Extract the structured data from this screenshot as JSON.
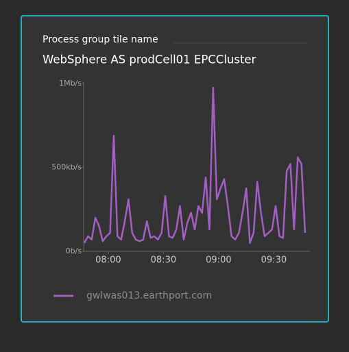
{
  "header": {
    "tile_name": "Process group tile name"
  },
  "chart_data": {
    "type": "line",
    "title": "WebSphere AS prodCell01 EPCCluster",
    "x": [
      467,
      469,
      471,
      473,
      475,
      477,
      479,
      481,
      483,
      485,
      487,
      489,
      491,
      493,
      495,
      497,
      499,
      501,
      503,
      505,
      507,
      509,
      511,
      513,
      515,
      517,
      519,
      521,
      523,
      525,
      527,
      529,
      531,
      533,
      535,
      537,
      539,
      541,
      543,
      545,
      547,
      549,
      551,
      553,
      555,
      557,
      559,
      561,
      563,
      565,
      567,
      569,
      571,
      573,
      575,
      577,
      579,
      581,
      583,
      585,
      587
    ],
    "series": [
      {
        "name": "gwlwas013.earthport.com",
        "color": "#a45fc4",
        "values": [
          50,
          90,
          70,
          200,
          150,
          60,
          90,
          110,
          690,
          90,
          70,
          180,
          310,
          110,
          70,
          60,
          70,
          180,
          80,
          90,
          70,
          110,
          330,
          90,
          80,
          130,
          270,
          70,
          170,
          230,
          130,
          270,
          230,
          440,
          130,
          975,
          310,
          375,
          430,
          270,
          90,
          70,
          110,
          230,
          375,
          50,
          110,
          415,
          230,
          90,
          110,
          130,
          270,
          90,
          80,
          480,
          520,
          130,
          560,
          520,
          110
        ]
      }
    ],
    "xlim": [
      467,
      587
    ],
    "xticks": [
      {
        "value": 480,
        "label": "08:00"
      },
      {
        "value": 510,
        "label": "08:30"
      },
      {
        "value": 540,
        "label": "09:00"
      },
      {
        "value": 570,
        "label": "09:30"
      }
    ],
    "ylim": [
      0,
      1000
    ],
    "yticks": [
      {
        "value": 0,
        "label": "0b/s"
      },
      {
        "value": 500,
        "label": "500kb/s"
      },
      {
        "value": 1000,
        "label": "1Mb/s"
      }
    ]
  }
}
